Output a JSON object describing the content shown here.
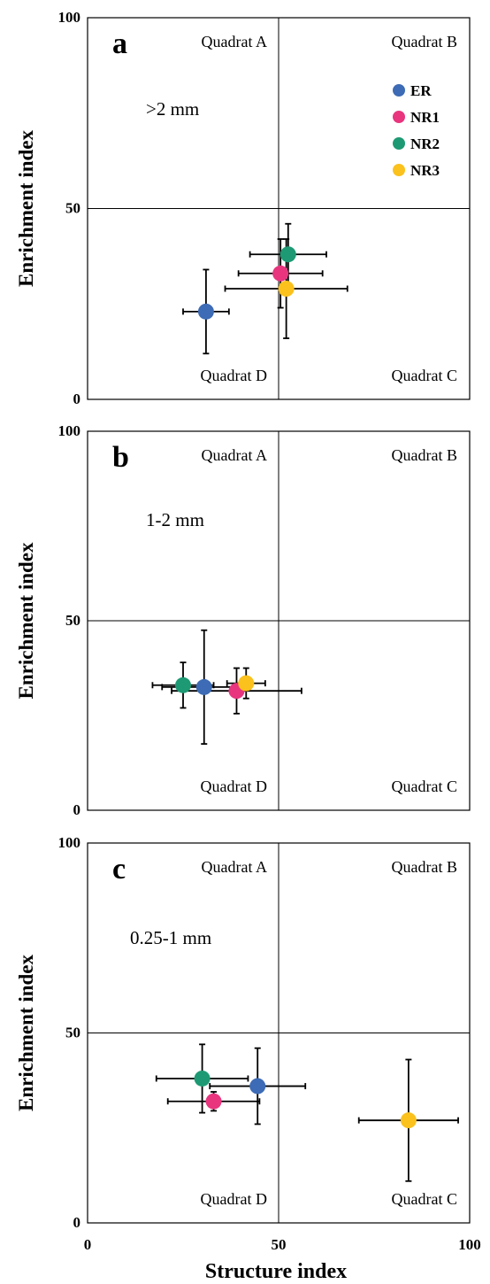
{
  "colors": {
    "ER": "#3d6bb5",
    "NR1": "#e8357e",
    "NR2": "#1d9a73",
    "NR3": "#fbc11c"
  },
  "legend": [
    "ER",
    "NR1",
    "NR2",
    "NR3"
  ],
  "xlabel": "Structure index",
  "ylabel": "Enrichment index",
  "x_ticks": [
    "0",
    "50",
    "100"
  ],
  "y_ticks": [
    "0",
    "50",
    "100"
  ],
  "chart_data": [
    {
      "type": "scatter",
      "panel": "a",
      "size_class": ">2 mm",
      "quadrants": {
        "A": "Quadrat A",
        "B": "Quadrat B",
        "C": "Quadrat C",
        "D": "Quadrat D"
      },
      "xlabel": "Structure index",
      "ylabel": "Enrichment index",
      "xlim": [
        0,
        100
      ],
      "ylim": [
        0,
        100
      ],
      "legend_position": "top-right",
      "points": [
        {
          "series": "ER",
          "x": 31,
          "y": 23,
          "xerr": 6,
          "yerr": 11
        },
        {
          "series": "NR1",
          "x": 50.5,
          "y": 33,
          "xerr": 11,
          "yerr": 9
        },
        {
          "series": "NR2",
          "x": 52.5,
          "y": 38,
          "xerr": 10,
          "yerr": 8
        },
        {
          "series": "NR3",
          "x": 52,
          "y": 29,
          "xerr": 16,
          "yerr": 13
        }
      ]
    },
    {
      "type": "scatter",
      "panel": "b",
      "size_class": "1-2 mm",
      "quadrants": {
        "A": "Quadrat A",
        "B": "Quadrat B",
        "C": "Quadrat C",
        "D": "Quadrat D"
      },
      "xlabel": "Structure index",
      "ylabel": "Enrichment index",
      "xlim": [
        0,
        100
      ],
      "ylim": [
        0,
        100
      ],
      "points": [
        {
          "series": "ER",
          "x": 30.5,
          "y": 32.5,
          "xerr": 11,
          "yerr": 15
        },
        {
          "series": "NR1",
          "x": 39,
          "y": 31.5,
          "xerr": 17,
          "yerr": 6
        },
        {
          "series": "NR2",
          "x": 25,
          "y": 33,
          "xerr": 8,
          "yerr": 6
        },
        {
          "series": "NR3",
          "x": 41.5,
          "y": 33.5,
          "xerr": 5,
          "yerr": 4
        }
      ]
    },
    {
      "type": "scatter",
      "panel": "c",
      "size_class": "0.25-1 mm",
      "quadrants": {
        "A": "Quadrat A",
        "B": "Quadrat B",
        "C": "Quadrat C",
        "D": "Quadrat D"
      },
      "xlabel": "Structure index",
      "ylabel": "Enrichment index",
      "xlim": [
        0,
        100
      ],
      "ylim": [
        0,
        100
      ],
      "points": [
        {
          "series": "ER",
          "x": 44.5,
          "y": 36,
          "xerr": 12.5,
          "yerr": 10
        },
        {
          "series": "NR1",
          "x": 33,
          "y": 32,
          "xerr": 12,
          "yerr": 2.5
        },
        {
          "series": "NR2",
          "x": 30,
          "y": 38,
          "xerr": 12,
          "yerr": 9
        },
        {
          "series": "NR3",
          "x": 84,
          "y": 27,
          "xerr": 13,
          "yerr": 16
        }
      ]
    }
  ]
}
